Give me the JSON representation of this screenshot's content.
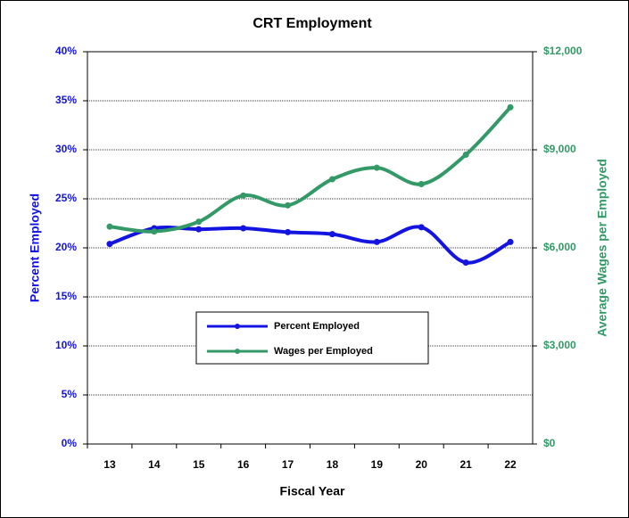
{
  "chart_data": {
    "type": "line",
    "title": "CRT Employment",
    "x_label": "Fiscal Year",
    "y_label": "Percent Employed",
    "y2_label": "Average Wages per Employed",
    "categories": [
      "13",
      "14",
      "15",
      "16",
      "17",
      "18",
      "19",
      "20",
      "21",
      "22"
    ],
    "series": [
      {
        "name": "Percent Employed",
        "color": "#1414e0",
        "values": [
          20.4,
          22.0,
          21.9,
          22.0,
          21.6,
          21.4,
          20.6,
          22.1,
          18.5,
          20.6
        ]
      },
      {
        "name": "Wages per Employed",
        "color": "#339966",
        "axis": "y2",
        "values": [
          6650,
          6500,
          6800,
          7600,
          7300,
          8100,
          8450,
          7950,
          8850,
          10300
        ]
      }
    ],
    "ylim": [
      0,
      40
    ],
    "yticks": [
      {
        "value": 0,
        "label": "0%"
      },
      {
        "value": 5,
        "label": "5%"
      },
      {
        "value": 10,
        "label": "10%"
      },
      {
        "value": 15,
        "label": "15%"
      },
      {
        "value": 20,
        "label": "20%"
      },
      {
        "value": 25,
        "label": "25%"
      },
      {
        "value": 30,
        "label": "30%"
      },
      {
        "value": 35,
        "label": "35%"
      },
      {
        "value": 40,
        "label": "40%"
      }
    ],
    "y2lim": [
      0,
      12000
    ],
    "y2ticks": [
      {
        "value": 0,
        "label": "$0"
      },
      {
        "value": 3000,
        "label": "$3,000"
      },
      {
        "value": 6000,
        "label": "$6,000"
      },
      {
        "value": 9000,
        "label": "$9,000"
      },
      {
        "value": 12000,
        "label": "$12,000"
      }
    ],
    "grid": true,
    "smooth": true
  }
}
